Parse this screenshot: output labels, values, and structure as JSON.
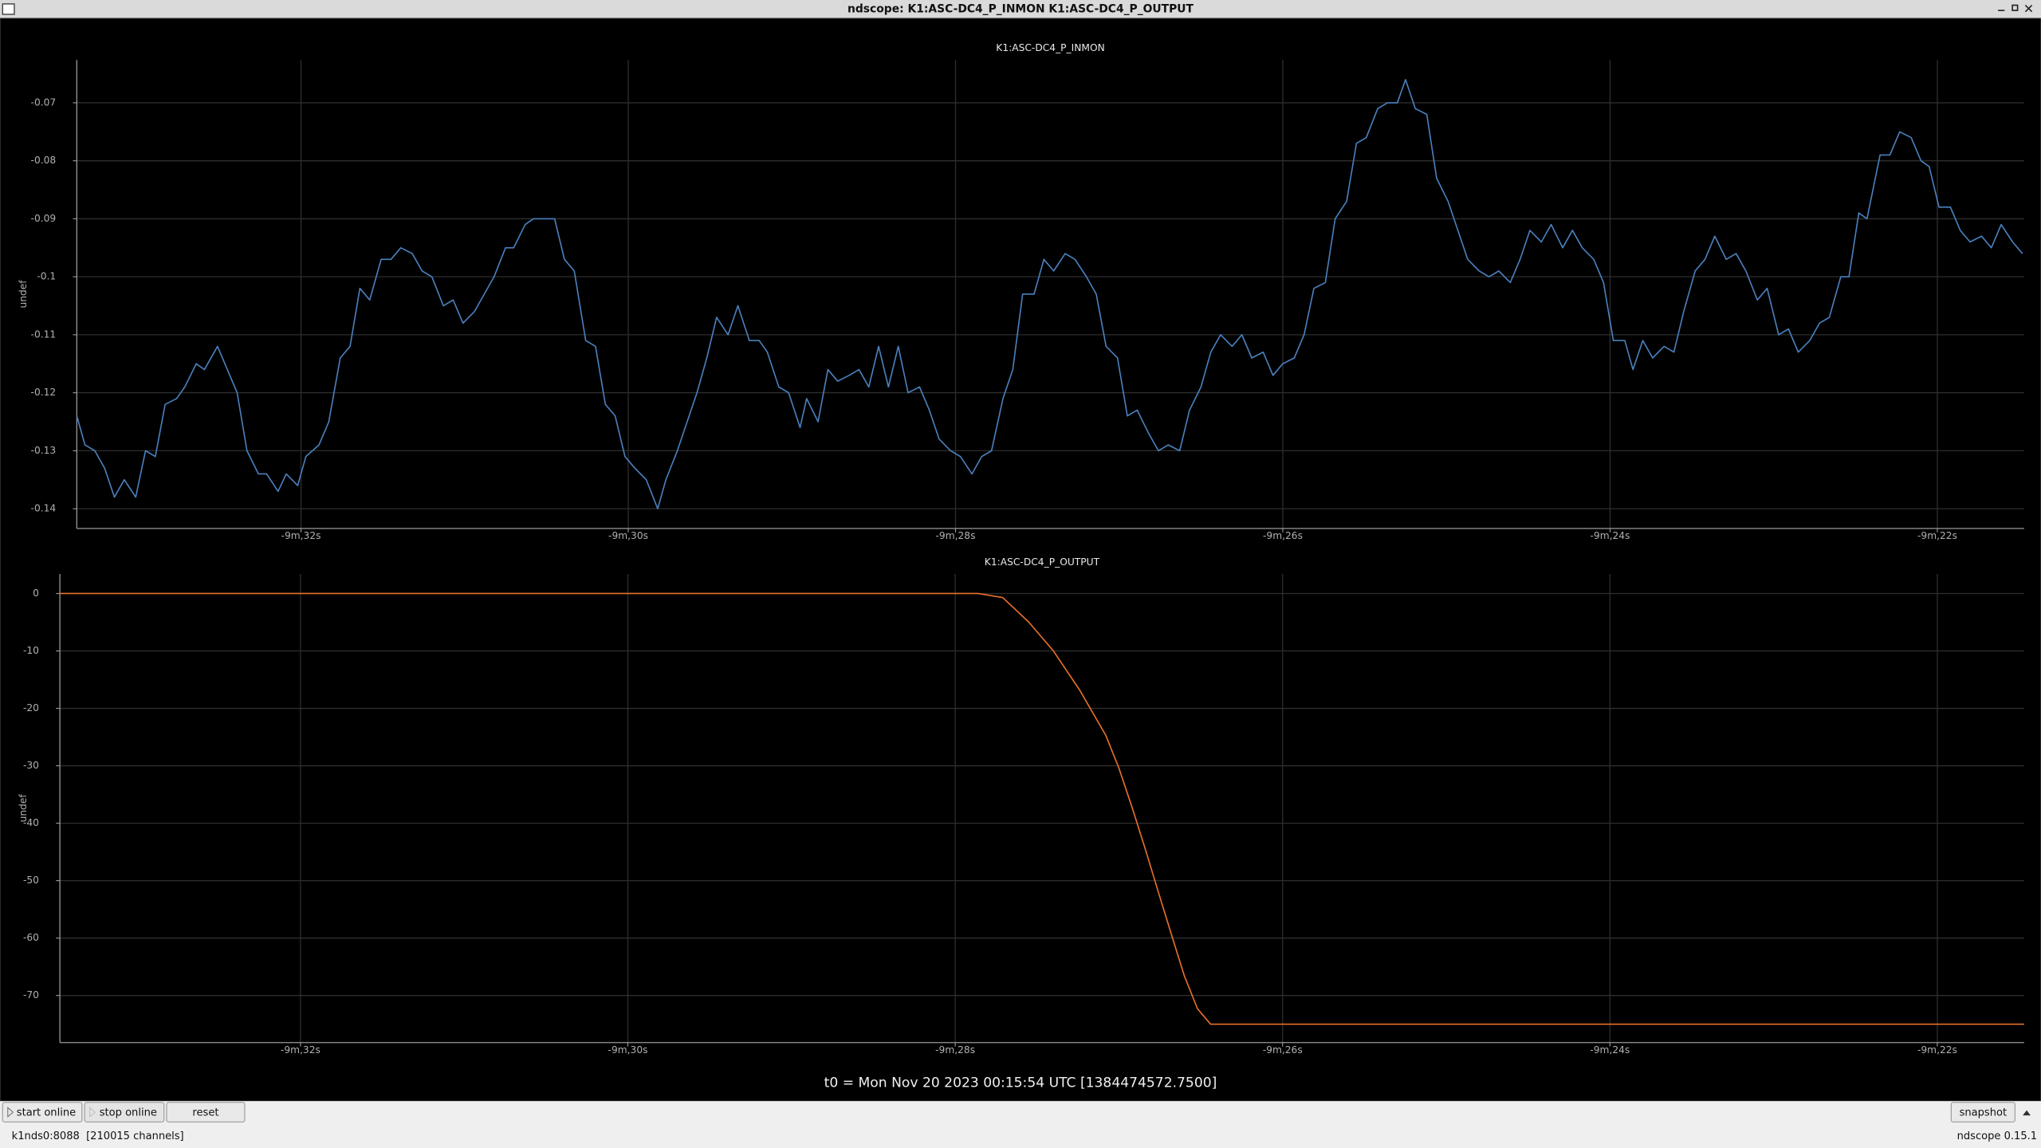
{
  "window": {
    "title": "ndscope: K1:ASC-DC4_P_INMON K1:ASC-DC4_P_OUTPUT"
  },
  "chart_data": [
    {
      "type": "line",
      "title": "K1:ASC-DC4_P_INMON",
      "y_label": "undef",
      "color": "#4a80bd",
      "grid": true,
      "xlim": [
        -573.37,
        -561.47
      ],
      "ylim": [
        -0.1434,
        -0.0626
      ],
      "xticks": [
        {
          "value": -572,
          "label": "-9m,32s"
        },
        {
          "value": -570,
          "label": "-9m,30s"
        },
        {
          "value": -568,
          "label": "-9m,28s"
        },
        {
          "value": -566,
          "label": "-9m,26s"
        },
        {
          "value": -564,
          "label": "-9m,24s"
        },
        {
          "value": -562,
          "label": "-9m,22s"
        }
      ],
      "yticks": [
        -0.14,
        -0.13,
        -0.12,
        -0.11,
        -0.1,
        -0.09,
        -0.08,
        -0.07
      ],
      "x": [
        -573.37,
        -573.32,
        -573.26,
        -573.2,
        -573.14,
        -573.08,
        -573.01,
        -572.95,
        -572.89,
        -572.83,
        -572.76,
        -572.71,
        -572.64,
        -572.59,
        -572.51,
        -572.45,
        -572.39,
        -572.33,
        -572.26,
        -572.21,
        -572.14,
        -572.09,
        -572.02,
        -571.97,
        -571.89,
        -571.83,
        -571.76,
        -571.7,
        -571.64,
        -571.58,
        -571.51,
        -571.45,
        -571.39,
        -571.32,
        -571.26,
        -571.2,
        -571.13,
        -571.07,
        -571.01,
        -570.94,
        -570.88,
        -570.82,
        -570.75,
        -570.7,
        -570.63,
        -570.58,
        -570.51,
        -570.45,
        -570.39,
        -570.33,
        -570.26,
        -570.2,
        -570.14,
        -570.08,
        -570.02,
        -569.96,
        -569.89,
        -569.82,
        -569.77,
        -569.7,
        -569.64,
        -569.58,
        -569.52,
        -569.46,
        -569.39,
        -569.33,
        -569.26,
        -569.2,
        -569.15,
        -569.08,
        -569.02,
        -568.95,
        -568.91,
        -568.84,
        -568.78,
        -568.72,
        -568.65,
        -568.59,
        -568.53,
        -568.47,
        -568.41,
        -568.35,
        -568.29,
        -568.22,
        -568.16,
        -568.1,
        -568.03,
        -567.97,
        -567.9,
        -567.84,
        -567.78,
        -567.71,
        -567.65,
        -567.59,
        -567.52,
        -567.46,
        -567.4,
        -567.33,
        -567.27,
        -567.2,
        -567.14,
        -567.08,
        -567.01,
        -566.95,
        -566.89,
        -566.82,
        -566.76,
        -566.7,
        -566.63,
        -566.57,
        -566.5,
        -566.44,
        -566.38,
        -566.31,
        -566.25,
        -566.19,
        -566.12,
        -566.06,
        -566.0,
        -565.93,
        -565.87,
        -565.81,
        -565.74,
        -565.68,
        -565.61,
        -565.55,
        -565.49,
        -565.42,
        -565.36,
        -565.3,
        -565.25,
        -565.19,
        -565.12,
        -565.06,
        -564.99,
        -564.93,
        -564.87,
        -564.8,
        -564.74,
        -564.68,
        -564.61,
        -564.55,
        -564.49,
        -564.42,
        -564.36,
        -564.29,
        -564.23,
        -564.17,
        -564.1,
        -564.04,
        -563.98,
        -563.91,
        -563.86,
        -563.8,
        -563.74,
        -563.67,
        -563.61,
        -563.55,
        -563.48,
        -563.42,
        -563.36,
        -563.29,
        -563.23,
        -563.17,
        -563.1,
        -563.04,
        -562.97,
        -562.91,
        -562.85,
        -562.78,
        -562.72,
        -562.66,
        -562.59,
        -562.54,
        -562.48,
        -562.43,
        -562.35,
        -562.29,
        -562.23,
        -562.16,
        -562.1,
        -562.05,
        -561.99,
        -561.92,
        -561.86,
        -561.8,
        -561.73,
        -561.67,
        -561.61,
        -561.54,
        -561.48
      ],
      "values": [
        -0.124,
        -0.129,
        -0.13,
        -0.133,
        -0.138,
        -0.135,
        -0.138,
        -0.13,
        -0.131,
        -0.122,
        -0.121,
        -0.119,
        -0.115,
        -0.116,
        -0.112,
        -0.116,
        -0.12,
        -0.13,
        -0.134,
        -0.134,
        -0.137,
        -0.134,
        -0.136,
        -0.131,
        -0.129,
        -0.125,
        -0.114,
        -0.112,
        -0.102,
        -0.104,
        -0.097,
        -0.097,
        -0.095,
        -0.096,
        -0.099,
        -0.1,
        -0.105,
        -0.104,
        -0.108,
        -0.106,
        -0.103,
        -0.1,
        -0.095,
        -0.095,
        -0.091,
        -0.09,
        -0.09,
        -0.09,
        -0.097,
        -0.099,
        -0.111,
        -0.112,
        -0.122,
        -0.124,
        -0.131,
        -0.133,
        -0.135,
        -0.14,
        -0.135,
        -0.13,
        -0.125,
        -0.12,
        -0.114,
        -0.107,
        -0.11,
        -0.105,
        -0.111,
        -0.111,
        -0.113,
        -0.119,
        -0.12,
        -0.126,
        -0.121,
        -0.125,
        -0.116,
        -0.118,
        -0.117,
        -0.116,
        -0.119,
        -0.112,
        -0.119,
        -0.112,
        -0.12,
        -0.119,
        -0.123,
        -0.128,
        -0.13,
        -0.131,
        -0.134,
        -0.131,
        -0.13,
        -0.121,
        -0.116,
        -0.103,
        -0.103,
        -0.097,
        -0.099,
        -0.096,
        -0.097,
        -0.1,
        -0.103,
        -0.112,
        -0.114,
        -0.124,
        -0.123,
        -0.127,
        -0.13,
        -0.129,
        -0.13,
        -0.123,
        -0.119,
        -0.113,
        -0.11,
        -0.112,
        -0.11,
        -0.114,
        -0.113,
        -0.117,
        -0.115,
        -0.114,
        -0.11,
        -0.102,
        -0.101,
        -0.09,
        -0.087,
        -0.077,
        -0.076,
        -0.071,
        -0.07,
        -0.07,
        -0.066,
        -0.071,
        -0.072,
        -0.083,
        -0.087,
        -0.092,
        -0.097,
        -0.099,
        -0.1,
        -0.099,
        -0.101,
        -0.097,
        -0.092,
        -0.094,
        -0.091,
        -0.095,
        -0.092,
        -0.095,
        -0.097,
        -0.101,
        -0.111,
        -0.111,
        -0.116,
        -0.111,
        -0.114,
        -0.112,
        -0.113,
        -0.106,
        -0.099,
        -0.097,
        -0.093,
        -0.097,
        -0.096,
        -0.099,
        -0.104,
        -0.102,
        -0.11,
        -0.109,
        -0.113,
        -0.111,
        -0.108,
        -0.107,
        -0.1,
        -0.1,
        -0.089,
        -0.09,
        -0.079,
        -0.079,
        -0.075,
        -0.076,
        -0.08,
        -0.081,
        -0.088,
        -0.088,
        -0.092,
        -0.094,
        -0.093,
        -0.095,
        -0.091,
        -0.094,
        -0.096
      ]
    },
    {
      "type": "line",
      "title": "K1:ASC-DC4_P_OUTPUT",
      "y_label": "undef",
      "color": "#e8702a",
      "grid": true,
      "xlim": [
        -573.47,
        -561.47
      ],
      "ylim": [
        -78.2,
        3.4
      ],
      "xticks": [
        {
          "value": -572,
          "label": "-9m,32s"
        },
        {
          "value": -570,
          "label": "-9m,30s"
        },
        {
          "value": -568,
          "label": "-9m,28s"
        },
        {
          "value": -566,
          "label": "-9m,26s"
        },
        {
          "value": -564,
          "label": "-9m,24s"
        },
        {
          "value": -562,
          "label": "-9m,22s"
        }
      ],
      "yticks": [
        -70,
        -60,
        -50,
        -40,
        -30,
        -20,
        -10,
        0
      ],
      "x": [
        -573.47,
        -567.86,
        -567.71,
        -567.55,
        -567.4,
        -567.24,
        -567.08,
        -567.0,
        -566.92,
        -566.84,
        -566.76,
        -566.68,
        -566.6,
        -566.52,
        -566.44,
        -561.47
      ],
      "values": [
        0,
        0,
        -0.7,
        -5,
        -10,
        -16.8,
        -24.7,
        -30.4,
        -37.2,
        -44.4,
        -51.9,
        -59.3,
        -66.6,
        -72.3,
        -75,
        -75
      ]
    }
  ],
  "t0_label": "t0 = Mon Nov 20 2023 00:15:54 UTC [1384474572.7500]",
  "buttons": [
    "start online",
    "stop online",
    "reset",
    "snapshot"
  ],
  "status": {
    "server": "k1nds0:8088  [210015 channels]",
    "version": "ndscope 0.15.1"
  }
}
